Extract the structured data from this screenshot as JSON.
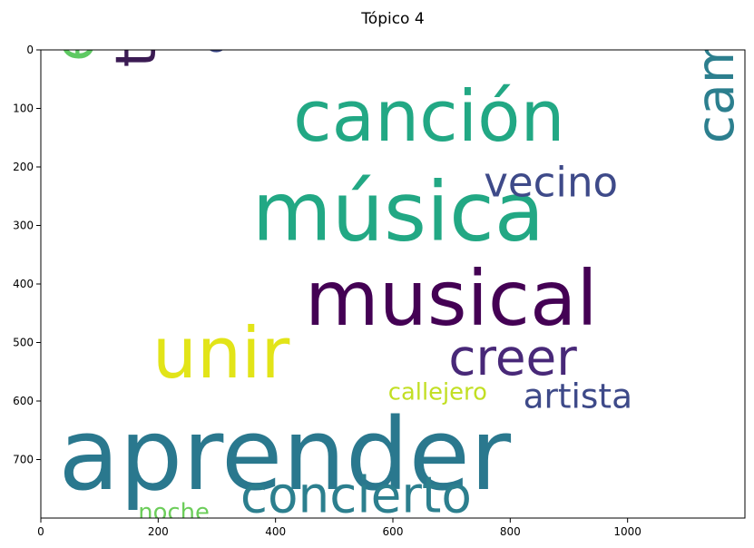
{
  "chart_data": {
    "type": "wordcloud",
    "title": "Tópico 4",
    "xlim": [
      0,
      1200
    ],
    "ylim": [
      800,
      0
    ],
    "xticks": [
      0,
      200,
      400,
      600,
      800,
      1000
    ],
    "yticks": [
      0,
      100,
      200,
      300,
      400,
      500,
      600,
      700
    ],
    "words": [
      {
        "text": "aprender",
        "x": 30,
        "y": 750,
        "size": 170,
        "vertical": false,
        "color": "#2a788e"
      },
      {
        "text": "música",
        "x": 360,
        "y": 325,
        "size": 140,
        "vertical": false,
        "color": "#22a884"
      },
      {
        "text": "musical",
        "x": 450,
        "y": 470,
        "size": 130,
        "vertical": false,
        "color": "#440154"
      },
      {
        "text": "canción",
        "x": 430,
        "y": 155,
        "size": 120,
        "vertical": false,
        "color": "#22a884"
      },
      {
        "text": "unir",
        "x": 190,
        "y": 560,
        "size": 120,
        "vertical": false,
        "color": "#e2e418"
      },
      {
        "text": "amigo",
        "x": 315,
        "y": 10,
        "size": 100,
        "vertical": true,
        "color": "#3e4a89"
      },
      {
        "text": "tocar",
        "x": 195,
        "y": 30,
        "size": 95,
        "vertical": true,
        "color": "#3b1b53"
      },
      {
        "text": "enseñar",
        "x": 90,
        "y": 20,
        "size": 95,
        "vertical": true,
        "color": "#5ec962"
      },
      {
        "text": "cambiar",
        "x": 1180,
        "y": 160,
        "size": 88,
        "vertical": true,
        "color": "#2c7f8e"
      },
      {
        "text": "concierto",
        "x": 340,
        "y": 790,
        "size": 85,
        "vertical": false,
        "color": "#2c7f8e"
      },
      {
        "text": "creer",
        "x": 695,
        "y": 555,
        "size": 85,
        "vertical": false,
        "color": "#482878"
      },
      {
        "text": "vecino",
        "x": 755,
        "y": 250,
        "size": 70,
        "vertical": false,
        "color": "#3e4a89"
      },
      {
        "text": "artista",
        "x": 822,
        "y": 612,
        "size": 58,
        "vertical": false,
        "color": "#3e4a89"
      },
      {
        "text": "callejero",
        "x": 592,
        "y": 598,
        "size": 40,
        "vertical": false,
        "color": "#c2df23"
      },
      {
        "text": "noche",
        "x": 166,
        "y": 803,
        "size": 40,
        "vertical": false,
        "color": "#6ccd5a"
      }
    ]
  }
}
